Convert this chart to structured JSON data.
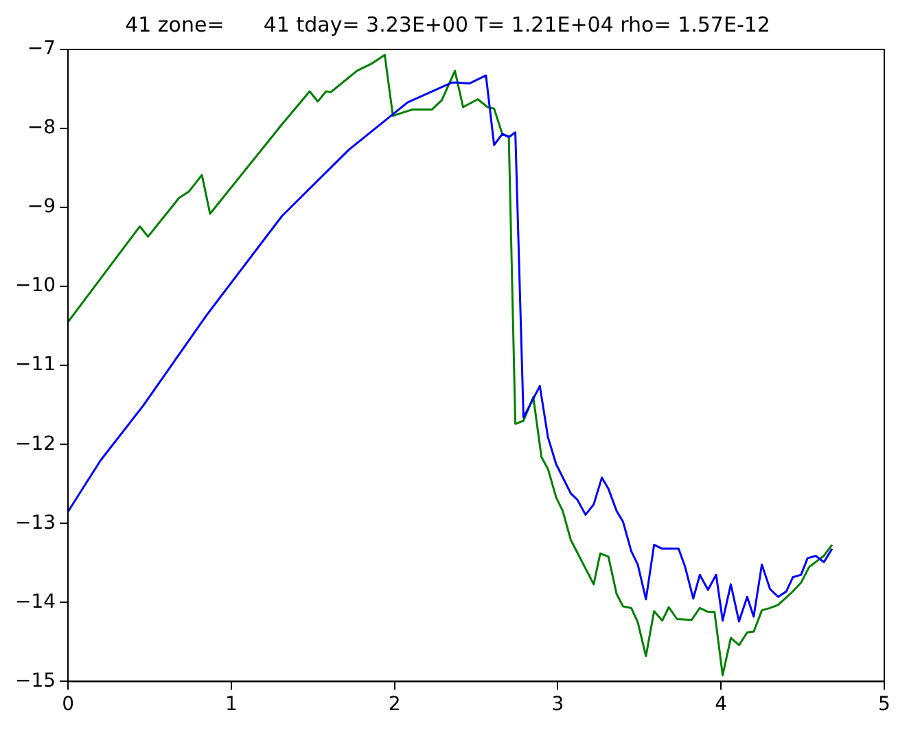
{
  "chart_data": {
    "type": "line",
    "title": "41 zone=      41 tday= 3.23E+00 T= 1.21E+04 rho= 1.57E-12",
    "xlim": [
      0,
      5
    ],
    "xticks": [
      0,
      1,
      2,
      3,
      4,
      5
    ],
    "ylim": [
      -15,
      -7
    ],
    "yticks": [
      -15,
      -14,
      -13,
      -12,
      -11,
      -10,
      -9,
      -8,
      -7
    ],
    "grid": false,
    "legend": false,
    "marker": "none",
    "line_style": "solid",
    "series": [
      {
        "color": "#0000ff",
        "x": [
          0,
          0.2,
          0.46,
          0.85,
          1.31,
          1.72,
          2.08,
          2.35,
          2.38,
          2.46,
          2.56,
          2.61,
          2.66,
          2.7,
          2.74,
          2.79,
          2.89,
          2.94,
          2.99,
          3.08,
          3.12,
          3.17,
          3.22,
          3.27,
          3.31,
          3.36,
          3.4,
          3.45,
          3.49,
          3.54,
          3.59,
          3.64,
          3.74,
          3.78,
          3.83,
          3.87,
          3.92,
          3.97,
          4.01,
          4.06,
          4.11,
          4.16,
          4.2,
          4.25,
          4.3,
          4.35,
          4.4,
          4.44,
          4.49,
          4.53,
          4.58,
          4.63,
          4.68
        ],
        "values": [
          -12.85,
          -12.2,
          -11.51,
          -10.36,
          -9.11,
          -8.27,
          -7.67,
          -7.42,
          -7.42,
          -7.43,
          -7.33,
          -8.21,
          -8.07,
          -8.11,
          -8.05,
          -11.66,
          -11.26,
          -11.91,
          -12.25,
          -12.62,
          -12.7,
          -12.89,
          -12.76,
          -12.42,
          -12.56,
          -12.84,
          -12.98,
          -13.35,
          -13.52,
          -13.96,
          -13.27,
          -13.32,
          -13.32,
          -13.55,
          -13.95,
          -13.65,
          -13.84,
          -13.65,
          -14.23,
          -13.77,
          -14.24,
          -13.93,
          -14.18,
          -13.52,
          -13.83,
          -13.93,
          -13.86,
          -13.68,
          -13.65,
          -13.44,
          -13.41,
          -13.49,
          -13.32
        ]
      },
      {
        "color": "#008000",
        "x": [
          0,
          0.44,
          0.49,
          0.68,
          0.74,
          0.82,
          0.87,
          1.31,
          1.48,
          1.53,
          1.58,
          1.61,
          1.77,
          1.86,
          1.94,
          1.99,
          2.11,
          2.23,
          2.29,
          2.37,
          2.42,
          2.51,
          2.57,
          2.61,
          2.66,
          2.7,
          2.74,
          2.79,
          2.85,
          2.9,
          2.94,
          2.99,
          3.03,
          3.08,
          3.22,
          3.26,
          3.31,
          3.36,
          3.4,
          3.45,
          3.49,
          3.54,
          3.59,
          3.64,
          3.68,
          3.73,
          3.82,
          3.87,
          3.92,
          3.96,
          4.01,
          4.06,
          4.11,
          4.16,
          4.2,
          4.25,
          4.3,
          4.35,
          4.44,
          4.49,
          4.54,
          4.63,
          4.68
        ],
        "values": [
          -10.45,
          -9.24,
          -9.37,
          -8.88,
          -8.8,
          -8.59,
          -9.08,
          -7.95,
          -7.53,
          -7.66,
          -7.53,
          -7.54,
          -7.27,
          -7.18,
          -7.07,
          -7.84,
          -7.76,
          -7.76,
          -7.64,
          -7.27,
          -7.73,
          -7.63,
          -7.73,
          -7.75,
          -8.07,
          -8.1,
          -11.74,
          -11.7,
          -11.4,
          -12.16,
          -12.31,
          -12.67,
          -12.84,
          -13.21,
          -13.77,
          -13.38,
          -13.42,
          -13.89,
          -14.05,
          -14.07,
          -14.25,
          -14.68,
          -14.11,
          -14.23,
          -14.06,
          -14.21,
          -14.22,
          -14.07,
          -14.12,
          -14.12,
          -14.92,
          -14.45,
          -14.54,
          -14.38,
          -14.37,
          -14.1,
          -14.07,
          -14.03,
          -13.86,
          -13.75,
          -13.55,
          -13.41,
          -13.27
        ]
      }
    ]
  }
}
